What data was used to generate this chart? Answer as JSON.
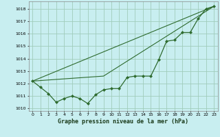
{
  "xlabel": "Graphe pression niveau de la mer (hPa)",
  "background_color": "#c8eef0",
  "grid_color": "#a0ccbb",
  "line_color": "#2d6a2d",
  "ylim": [
    1009.8,
    1018.6
  ],
  "xlim": [
    -0.5,
    23.5
  ],
  "yticks": [
    1010,
    1011,
    1012,
    1013,
    1014,
    1015,
    1016,
    1017,
    1018
  ],
  "xticks": [
    0,
    1,
    2,
    3,
    4,
    5,
    6,
    7,
    8,
    9,
    10,
    11,
    12,
    13,
    14,
    15,
    16,
    17,
    18,
    19,
    20,
    21,
    22,
    23
  ],
  "series": [
    {
      "x": [
        0,
        1,
        2,
        3,
        4,
        5,
        6,
        7,
        8,
        9,
        10,
        11,
        12,
        13,
        14,
        15,
        16,
        17,
        18,
        19,
        20,
        21,
        22,
        23
      ],
      "y": [
        1012.2,
        1011.7,
        1011.2,
        1010.5,
        1010.8,
        1011.0,
        1010.8,
        1010.4,
        1011.1,
        1011.5,
        1011.6,
        1011.6,
        1012.5,
        1012.6,
        1012.6,
        1012.6,
        1013.9,
        1015.4,
        1015.5,
        1016.1,
        1016.1,
        1017.2,
        1018.0,
        1018.2
      ],
      "with_markers": true
    },
    {
      "x": [
        0,
        23
      ],
      "y": [
        1012.2,
        1018.2
      ],
      "with_markers": false
    },
    {
      "x": [
        0,
        9,
        23
      ],
      "y": [
        1012.2,
        1012.6,
        1018.2
      ],
      "with_markers": false
    }
  ]
}
